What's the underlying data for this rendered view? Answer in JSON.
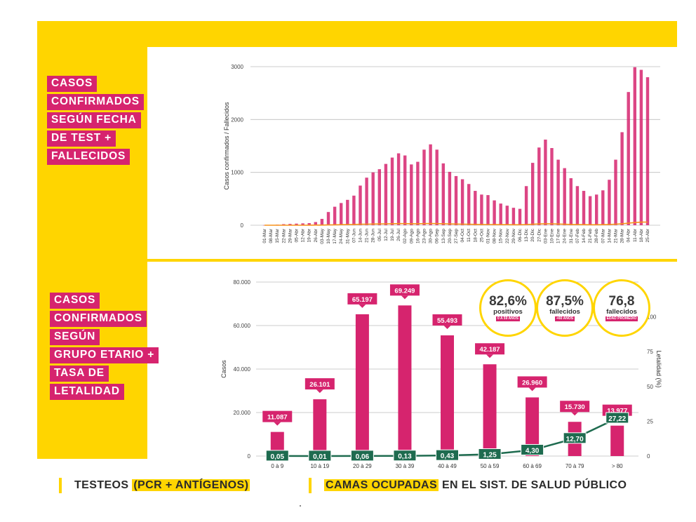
{
  "colors": {
    "yellow": "#ffd500",
    "magenta": "#d6246e",
    "green": "#1e6b4f",
    "orange": "#f7941d"
  },
  "top_title": [
    "CASOS",
    "CONFIRMADOS",
    "SEGÚN FECHA",
    "DE TEST +",
    "FALLECIDOS"
  ],
  "bottom_title": [
    "CASOS",
    "CONFIRMADOS",
    "SEGÚN",
    "GRUPO ETARIO +",
    "TASA DE",
    "LETALIDAD"
  ],
  "circles": [
    {
      "value": "82,6%",
      "label": "positivos",
      "tag": "0 A 59 AÑOS"
    },
    {
      "value": "87,5%",
      "label": "fallecidos",
      "tag": "+60 AÑOS"
    },
    {
      "value": "76,8",
      "label": "fallecidos",
      "tag": "EDAD PROMEDIO"
    }
  ],
  "footer": {
    "left_pre": "TESTEOS ",
    "left_hl": "(PCR + ANTÍGENOS)",
    "right_hl": "CAMAS OCUPADAS",
    "right_post": " EN EL SIST. DE SALUD PÚBLICO"
  },
  "chart_data": [
    {
      "type": "bar",
      "title": "",
      "xlabel": "",
      "ylabel": "Casos confirmados / Fallecidos",
      "ylim": [
        0,
        3000
      ],
      "y_ticks": [
        "0",
        "1000",
        "2000",
        "3000"
      ],
      "grid": true,
      "tick_labels": [
        "01-Mar",
        "08-Mar",
        "15-Mar",
        "22-Mar",
        "29-Mar",
        "05-Abr",
        "12-Abr",
        "19-Abr",
        "26-Abr",
        "03-May",
        "10-May",
        "17-May",
        "24-May",
        "31-May",
        "07-Jun",
        "14-Jun",
        "21-Jun",
        "28-Jun",
        "05-Jul",
        "12-Jul",
        "19-Jul",
        "26-Jul",
        "02-Ago",
        "09-Ago",
        "16-Ago",
        "23-Ago",
        "30-Ago",
        "06-Sep",
        "13-Sep",
        "20-Sep",
        "27-Sep",
        "04-Oct",
        "11-Oct",
        "18-Oct",
        "25-Oct",
        "01-Nov",
        "08-Nov",
        "15-Nov",
        "22-Nov",
        "29-Nov",
        "06-Dic",
        "13-Dic",
        "20-Dic",
        "27-Dic",
        "03-Ene",
        "10-Ene",
        "17-Ene",
        "24-Ene",
        "31-Ene",
        "07-Feb",
        "14-Feb",
        "21-Feb",
        "28-Feb",
        "07-Mar",
        "14-Mar",
        "21-Mar",
        "28-Mar",
        "04-Abr",
        "11-Abr",
        "18-Abr",
        "25-Abr"
      ],
      "series": [
        {
          "name": "Casos confirmados",
          "color": "#d6246e",
          "values": [
            2,
            5,
            10,
            20,
            25,
            30,
            35,
            40,
            60,
            120,
            250,
            350,
            420,
            480,
            560,
            750,
            900,
            1000,
            1060,
            1160,
            1280,
            1360,
            1320,
            1150,
            1200,
            1430,
            1530,
            1430,
            1170,
            1010,
            930,
            870,
            780,
            650,
            580,
            570,
            470,
            410,
            370,
            330,
            310,
            740,
            1180,
            1470,
            1620,
            1460,
            1240,
            1080,
            890,
            740,
            650,
            550,
            580,
            660,
            860,
            1240,
            1760,
            2520,
            2990,
            2940,
            2800
          ]
        },
        {
          "name": "Fallecidos",
          "color": "#f7941d",
          "values": [
            0,
            0,
            0,
            0,
            0,
            0,
            0,
            1,
            2,
            3,
            5,
            8,
            10,
            12,
            15,
            18,
            20,
            22,
            24,
            26,
            28,
            30,
            30,
            28,
            28,
            30,
            32,
            30,
            28,
            24,
            22,
            20,
            18,
            16,
            14,
            13,
            12,
            10,
            10,
            9,
            9,
            12,
            18,
            24,
            28,
            26,
            22,
            18,
            15,
            12,
            10,
            9,
            9,
            10,
            14,
            20,
            28,
            38,
            50,
            58,
            60
          ]
        }
      ]
    },
    {
      "type": "bar",
      "title": "",
      "xlabel": "",
      "ylabel": "Casos",
      "y2label": "Letalidad (%)",
      "categories": [
        "0 à 9",
        "10 à 19",
        "20 à 29",
        "30 à 39",
        "40 à 49",
        "50 à 59",
        "60 à 69",
        "70 à 79",
        "> 80"
      ],
      "ylim": [
        0,
        80000
      ],
      "y_ticks": [
        "0",
        "20.000",
        "40.000",
        "60.000",
        "80.000"
      ],
      "y2lim": [
        0,
        125
      ],
      "y2_ticks": [
        "0",
        "25",
        "50",
        "75",
        "100"
      ],
      "grid": true,
      "series": [
        {
          "name": "Casos",
          "color": "#d6246e",
          "values": [
            11087,
            26101,
            65197,
            69249,
            55493,
            42187,
            26960,
            15730,
            13977
          ],
          "labels": [
            "11.087",
            "26.101",
            "65.197",
            "69.249",
            "55.493",
            "42.187",
            "26.960",
            "15.730",
            "13.977"
          ]
        },
        {
          "name": "Letalidad (%)",
          "color": "#1e6b4f",
          "axis": "right",
          "values": [
            0.05,
            0.01,
            0.06,
            0.13,
            0.43,
            1.25,
            4.3,
            12.7,
            27.22
          ],
          "labels": [
            "0,05",
            "0,01",
            "0,06",
            "0,13",
            "0,43",
            "1,25",
            "4,30",
            "12,70",
            "27,22"
          ]
        }
      ]
    }
  ]
}
